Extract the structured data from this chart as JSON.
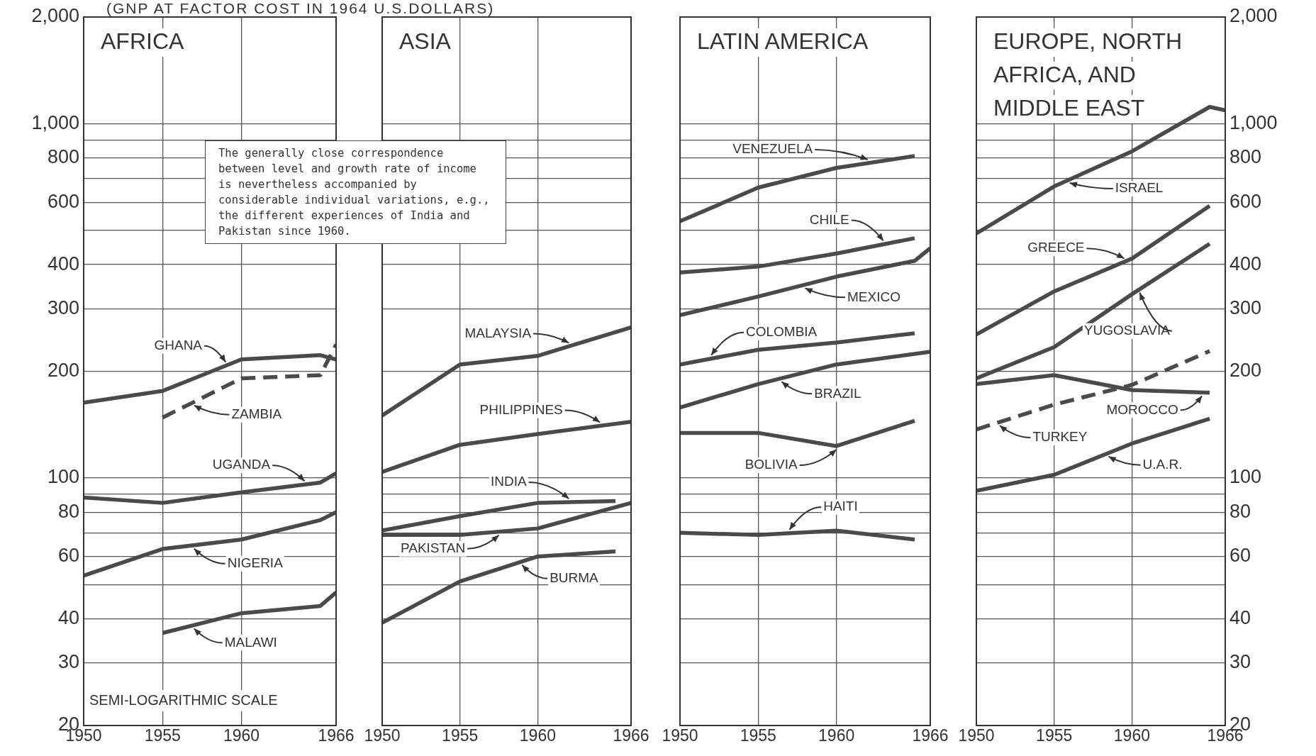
{
  "chart_data": [
    {
      "type": "line",
      "title": "AFRICA",
      "subtitle": "(GNP AT FACTOR COST IN 1964 U.S.DOLLARS)",
      "log": true,
      "grid": true,
      "marker": "none",
      "xlim": [
        1950,
        1966
      ],
      "xticks": [
        1950,
        1955,
        1960,
        1966
      ],
      "ylim": [
        20,
        2000
      ],
      "yticks": [
        20,
        30,
        40,
        {
          "value": 50,
          "label": null
        },
        60,
        {
          "value": 70,
          "label": null
        },
        80,
        {
          "value": 90,
          "label": null
        },
        100,
        200,
        300,
        400,
        {
          "value": 500,
          "label": null
        },
        600,
        {
          "value": 700,
          "label": null
        },
        800,
        {
          "value": 900,
          "label": null
        },
        {
          "value": 1000,
          "label": "1,000"
        },
        {
          "value": 2000,
          "label": "2,000"
        }
      ],
      "annotations": [
        "The generally close correspondence between level and growth rate of income is nevertheless accompanied by considerable individual variations, e.g., the different experiences of India and Pakistan since 1960.",
        "SEMI-LOGARITHMIC SCALE"
      ],
      "series": [
        {
          "name": "GHANA",
          "color": "#4a4a4a",
          "x": [
            1950,
            1955,
            1960,
            1965,
            1966
          ],
          "values": [
            163,
            176,
            216,
            222,
            216
          ]
        },
        {
          "name": "ZAMBIA",
          "color": "#4a4a4a",
          "line_style": "dashed",
          "x": [
            1955,
            1960,
            1965,
            1966
          ],
          "values": [
            148,
            191,
            195,
            238
          ]
        },
        {
          "name": "UGANDA",
          "color": "#4a4a4a",
          "x": [
            1950,
            1955,
            1960,
            1965,
            1966
          ],
          "values": [
            88,
            85,
            91,
            97,
            103
          ]
        },
        {
          "name": "NIGERIA",
          "color": "#4a4a4a",
          "x": [
            1950,
            1955,
            1960,
            1965,
            1966
          ],
          "values": [
            53,
            63,
            67,
            76,
            80
          ]
        },
        {
          "name": "MALAWI",
          "color": "#4a4a4a",
          "x": [
            1955,
            1960,
            1965,
            1966
          ],
          "values": [
            36.5,
            41.5,
            43.5,
            47.5
          ]
        }
      ]
    },
    {
      "type": "line",
      "title": "ASIA",
      "log": true,
      "grid": true,
      "marker": "none",
      "tick_labels": "x",
      "xlim": [
        1950,
        1966
      ],
      "xticks": [
        1950,
        1955,
        1960,
        1966
      ],
      "ylim": [
        20,
        2000
      ],
      "yticks": [
        20,
        30,
        40,
        50,
        60,
        70,
        80,
        90,
        100,
        200,
        300,
        400,
        500,
        600,
        700,
        800,
        900,
        1000,
        2000
      ],
      "series": [
        {
          "name": "MALAYSIA",
          "color": "#4a4a4a",
          "x": [
            1950,
            1955,
            1960,
            1966
          ],
          "values": [
            150,
            209,
            221,
            266
          ]
        },
        {
          "name": "PHILIPPINES",
          "color": "#4a4a4a",
          "x": [
            1950,
            1955,
            1960,
            1966
          ],
          "values": [
            104,
            124,
            133,
            144
          ]
        },
        {
          "name": "INDIA",
          "color": "#4a4a4a",
          "x": [
            1950,
            1955,
            1960,
            1965
          ],
          "values": [
            71,
            78,
            85,
            86
          ]
        },
        {
          "name": "PAKISTAN",
          "color": "#4a4a4a",
          "x": [
            1950,
            1955,
            1960,
            1966
          ],
          "values": [
            69,
            69,
            72,
            85
          ]
        },
        {
          "name": "BURMA",
          "color": "#4a4a4a",
          "x": [
            1950,
            1955,
            1960,
            1965
          ],
          "values": [
            39,
            51,
            60,
            62
          ]
        }
      ]
    },
    {
      "type": "line",
      "title": "LATIN AMERICA",
      "log": true,
      "grid": true,
      "marker": "none",
      "tick_labels": "x",
      "xlim": [
        1950,
        1966
      ],
      "xticks": [
        1950,
        1955,
        1960,
        1966
      ],
      "ylim": [
        20,
        2000
      ],
      "yticks": [
        20,
        30,
        40,
        50,
        60,
        70,
        80,
        90,
        100,
        200,
        300,
        400,
        500,
        600,
        700,
        800,
        900,
        1000,
        2000
      ],
      "series": [
        {
          "name": "VENEZUELA",
          "color": "#4a4a4a",
          "x": [
            1950,
            1955,
            1960,
            1965
          ],
          "values": [
            530,
            660,
            750,
            810
          ]
        },
        {
          "name": "CHILE",
          "color": "#4a4a4a",
          "x": [
            1950,
            1955,
            1960,
            1965
          ],
          "values": [
            380,
            395,
            430,
            475
          ]
        },
        {
          "name": "MEXICO",
          "color": "#4a4a4a",
          "x": [
            1950,
            1955,
            1960,
            1965,
            1966
          ],
          "values": [
            288,
            325,
            370,
            410,
            445
          ]
        },
        {
          "name": "COLOMBIA",
          "color": "#4a4a4a",
          "x": [
            1950,
            1955,
            1960,
            1965
          ],
          "values": [
            209,
            230,
            241,
            256
          ]
        },
        {
          "name": "BRAZIL",
          "color": "#4a4a4a",
          "x": [
            1950,
            1955,
            1960,
            1966
          ],
          "values": [
            158,
            184,
            209,
            227
          ]
        },
        {
          "name": "BOLIVIA",
          "color": "#4a4a4a",
          "x": [
            1950,
            1955,
            1960,
            1965
          ],
          "values": [
            134,
            134,
            123,
            145
          ]
        },
        {
          "name": "HAITI",
          "color": "#4a4a4a",
          "x": [
            1950,
            1955,
            1960,
            1965
          ],
          "values": [
            70,
            69,
            71,
            67
          ]
        }
      ]
    },
    {
      "type": "line",
      "title": "EUROPE, NORTH AFRICA, AND MIDDLE EAST",
      "log": true,
      "grid": true,
      "marker": "none",
      "xlim": [
        1950,
        1966
      ],
      "xticks": [
        1950,
        1955,
        1960,
        1966
      ],
      "ylim": [
        20,
        2000
      ],
      "yticks": [
        20,
        30,
        40,
        {
          "value": 50,
          "label": null
        },
        60,
        {
          "value": 70,
          "label": null
        },
        80,
        {
          "value": 90,
          "label": null
        },
        100,
        200,
        300,
        400,
        {
          "value": 500,
          "label": null
        },
        600,
        {
          "value": 700,
          "label": null
        },
        800,
        {
          "value": 900,
          "label": null
        },
        {
          "value": 1000,
          "label": "1,000"
        },
        {
          "value": 2000,
          "label": "2,000"
        }
      ],
      "series": [
        {
          "name": "ISRAEL",
          "color": "#4a4a4a",
          "x": [
            1950,
            1955,
            1960,
            1965,
            1966
          ],
          "values": [
            490,
            665,
            835,
            1115,
            1090
          ]
        },
        {
          "name": "GREECE",
          "color": "#4a4a4a",
          "x": [
            1950,
            1955,
            1960,
            1965
          ],
          "values": [
            254,
            336,
            416,
            586
          ]
        },
        {
          "name": "YUGOSLAVIA",
          "color": "#4a4a4a",
          "x": [
            1950,
            1955,
            1960,
            1965
          ],
          "values": [
            191,
            234,
            330,
            458
          ]
        },
        {
          "name": "MOROCCO",
          "color": "#4a4a4a",
          "x": [
            1950,
            1955,
            1960,
            1965
          ],
          "values": [
            184,
            195,
            177,
            174
          ]
        },
        {
          "name": "TURKEY",
          "color": "#4a4a4a",
          "line_style": "dashed",
          "x": [
            1950,
            1955,
            1960,
            1965
          ],
          "values": [
            137,
            161,
            183,
            228
          ]
        },
        {
          "name": "U.A.R.",
          "color": "#4a4a4a",
          "x": [
            1950,
            1955,
            1960,
            1965
          ],
          "values": [
            92,
            102,
            125,
            147
          ]
        }
      ]
    }
  ]
}
